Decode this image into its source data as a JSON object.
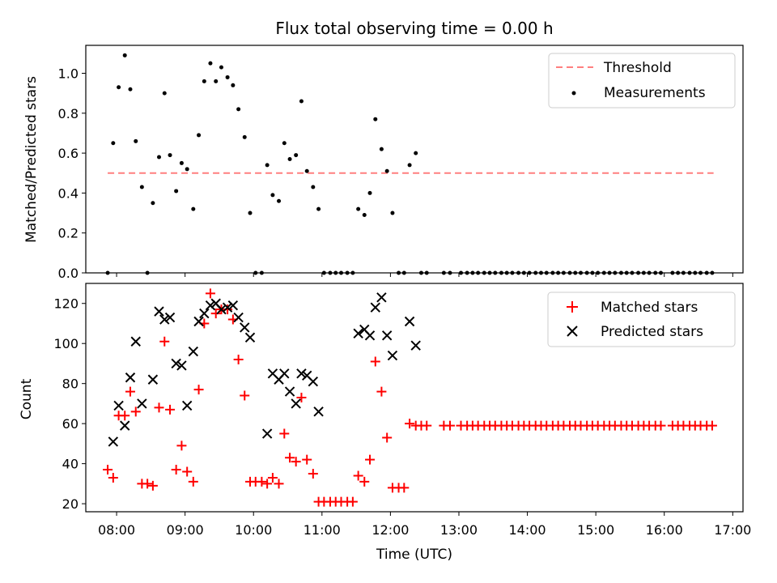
{
  "chart_data": [
    {
      "type": "scatter",
      "title": "Flux total observing time = 0.00 h",
      "xlabel": "",
      "ylabel": "Matched/Predicted stars",
      "xlim": [
        7.55,
        17.15
      ],
      "ylim": [
        0,
        1.14
      ],
      "yticks": [
        "0.0",
        "0.2",
        "0.4",
        "0.6",
        "0.8",
        "1.0"
      ],
      "ytick_values": [
        0.0,
        0.2,
        0.4,
        0.6,
        0.8,
        1.0
      ],
      "legend_position": "top-right",
      "series": [
        {
          "name": "Threshold",
          "kind": "dashed-line",
          "color": "#ff7f7f",
          "x": [
            7.87,
            16.72
          ],
          "y": [
            0.5,
            0.5
          ]
        },
        {
          "name": "Measurements",
          "kind": "dot",
          "color": "#000000",
          "x": [
            7.87,
            7.95,
            8.03,
            8.12,
            8.2,
            8.28,
            8.37,
            8.45,
            8.53,
            8.62,
            8.7,
            8.78,
            8.87,
            8.95,
            9.03,
            9.12,
            9.2,
            9.28,
            9.37,
            9.45,
            9.53,
            9.62,
            9.7,
            9.78,
            9.87,
            9.95,
            10.03,
            10.12,
            10.2,
            10.28,
            10.37,
            10.45,
            10.53,
            10.62,
            10.7,
            10.78,
            10.87,
            10.95,
            11.03,
            11.12,
            11.2,
            11.28,
            11.37,
            11.45,
            11.53,
            11.62,
            11.7,
            11.78,
            11.87,
            11.95,
            12.03,
            12.12,
            12.2,
            12.28,
            12.37,
            12.45,
            12.53,
            12.78,
            12.87,
            13.03,
            13.12,
            13.2,
            13.28,
            13.37,
            13.45,
            13.53,
            13.62,
            13.7,
            13.78,
            13.87,
            13.95,
            14.03,
            14.12,
            14.2,
            14.28,
            14.37,
            14.45,
            14.53,
            14.62,
            14.7,
            14.78,
            14.87,
            14.95,
            15.03,
            15.12,
            15.2,
            15.28,
            15.37,
            15.45,
            15.53,
            15.62,
            15.7,
            15.78,
            15.87,
            15.95,
            16.12,
            16.2,
            16.28,
            16.37,
            16.45,
            16.53,
            16.62,
            16.7
          ],
          "y": [
            0.0,
            0.65,
            0.93,
            1.09,
            0.92,
            0.66,
            0.43,
            0.0,
            0.35,
            0.58,
            0.9,
            0.59,
            0.41,
            0.55,
            0.52,
            0.32,
            0.69,
            0.96,
            1.05,
            0.96,
            1.03,
            0.98,
            0.94,
            0.82,
            0.68,
            0.3,
            0.0,
            0.0,
            0.54,
            0.39,
            0.36,
            0.65,
            0.57,
            0.59,
            0.86,
            0.51,
            0.43,
            0.32,
            0.0,
            0.0,
            0.0,
            0.0,
            0.0,
            0.0,
            0.32,
            0.29,
            0.4,
            0.77,
            0.62,
            0.51,
            0.3,
            0.0,
            0.0,
            0.54,
            0.6,
            0.0,
            0.0,
            0.0,
            0.0,
            0.0,
            0.0,
            0.0,
            0.0,
            0.0,
            0.0,
            0.0,
            0.0,
            0.0,
            0.0,
            0.0,
            0.0,
            0.0,
            0.0,
            0.0,
            0.0,
            0.0,
            0.0,
            0.0,
            0.0,
            0.0,
            0.0,
            0.0,
            0.0,
            0.0,
            0.0,
            0.0,
            0.0,
            0.0,
            0.0,
            0.0,
            0.0,
            0.0,
            0.0,
            0.0,
            0.0,
            0.0,
            0.0,
            0.0,
            0.0,
            0.0,
            0.0,
            0.0,
            0.0
          ]
        }
      ]
    },
    {
      "type": "scatter",
      "title": "",
      "xlabel": "Time (UTC)",
      "ylabel": "Count",
      "xlim": [
        7.55,
        17.15
      ],
      "ylim": [
        16,
        130
      ],
      "yticks": [
        "20",
        "40",
        "60",
        "80",
        "100",
        "120"
      ],
      "ytick_values": [
        20,
        40,
        60,
        80,
        100,
        120
      ],
      "xticks": [
        "08:00",
        "09:00",
        "10:00",
        "11:00",
        "12:00",
        "13:00",
        "14:00",
        "15:00",
        "16:00",
        "17:00"
      ],
      "xtick_values": [
        8,
        9,
        10,
        11,
        12,
        13,
        14,
        15,
        16,
        17
      ],
      "legend_position": "top-right",
      "series": [
        {
          "name": "Matched stars",
          "kind": "plus",
          "color": "#ff0000",
          "x": [
            7.87,
            7.95,
            8.03,
            8.12,
            8.2,
            8.28,
            8.37,
            8.45,
            8.53,
            8.62,
            8.7,
            8.78,
            8.87,
            8.95,
            9.03,
            9.12,
            9.2,
            9.28,
            9.37,
            9.45,
            9.53,
            9.62,
            9.7,
            9.78,
            9.87,
            9.95,
            10.03,
            10.12,
            10.2,
            10.28,
            10.37,
            10.45,
            10.53,
            10.62,
            10.7,
            10.78,
            10.87,
            10.95,
            11.03,
            11.12,
            11.2,
            11.28,
            11.37,
            11.45,
            11.53,
            11.62,
            11.7,
            11.78,
            11.87,
            11.95,
            12.03,
            12.12,
            12.2,
            12.28,
            12.37,
            12.45,
            12.53,
            12.78,
            12.87,
            13.03,
            13.12,
            13.2,
            13.28,
            13.37,
            13.45,
            13.53,
            13.62,
            13.7,
            13.78,
            13.87,
            13.95,
            14.03,
            14.12,
            14.2,
            14.28,
            14.37,
            14.45,
            14.53,
            14.62,
            14.7,
            14.78,
            14.87,
            14.95,
            15.03,
            15.12,
            15.2,
            15.28,
            15.37,
            15.45,
            15.53,
            15.62,
            15.7,
            15.78,
            15.87,
            15.95,
            16.12,
            16.2,
            16.28,
            16.37,
            16.45,
            16.53,
            16.62,
            16.7
          ],
          "y": [
            37,
            33,
            64,
            64,
            76,
            66,
            30,
            30,
            29,
            68,
            101,
            67,
            37,
            49,
            36,
            31,
            77,
            110,
            125,
            115,
            117,
            117,
            112,
            92,
            74,
            31,
            31,
            31,
            30,
            33,
            30,
            55,
            43,
            41,
            73,
            42,
            35,
            21,
            21,
            21,
            21,
            21,
            21,
            21,
            34,
            31,
            42,
            91,
            76,
            53,
            28,
            28,
            28,
            60,
            59,
            59,
            59,
            59,
            59,
            59,
            59,
            59,
            59,
            59,
            59,
            59,
            59,
            59,
            59,
            59,
            59,
            59,
            59,
            59,
            59,
            59,
            59,
            59,
            59,
            59,
            59,
            59,
            59,
            59,
            59,
            59,
            59,
            59,
            59,
            59,
            59,
            59,
            59,
            59,
            59,
            59,
            59,
            59,
            59,
            59,
            59,
            59,
            59
          ]
        },
        {
          "name": "Predicted stars",
          "kind": "x",
          "color": "#000000",
          "x": [
            7.95,
            8.03,
            8.12,
            8.2,
            8.28,
            8.37,
            8.53,
            8.62,
            8.7,
            8.78,
            8.87,
            8.95,
            9.03,
            9.12,
            9.2,
            9.28,
            9.37,
            9.45,
            9.53,
            9.62,
            9.7,
            9.78,
            9.87,
            9.95,
            10.2,
            10.28,
            10.37,
            10.45,
            10.53,
            10.62,
            10.7,
            10.78,
            10.87,
            10.95,
            11.53,
            11.62,
            11.7,
            11.78,
            11.87,
            11.95,
            12.03,
            12.28,
            12.37
          ],
          "y": [
            51,
            69,
            59,
            83,
            101,
            70,
            82,
            116,
            112,
            113,
            90,
            89,
            69,
            96,
            111,
            115,
            119,
            120,
            117,
            118,
            119,
            113,
            108,
            103,
            55,
            85,
            82,
            85,
            76,
            70,
            85,
            84,
            81,
            66,
            105,
            107,
            104,
            118,
            123,
            104,
            94,
            111,
            99
          ]
        }
      ]
    }
  ]
}
